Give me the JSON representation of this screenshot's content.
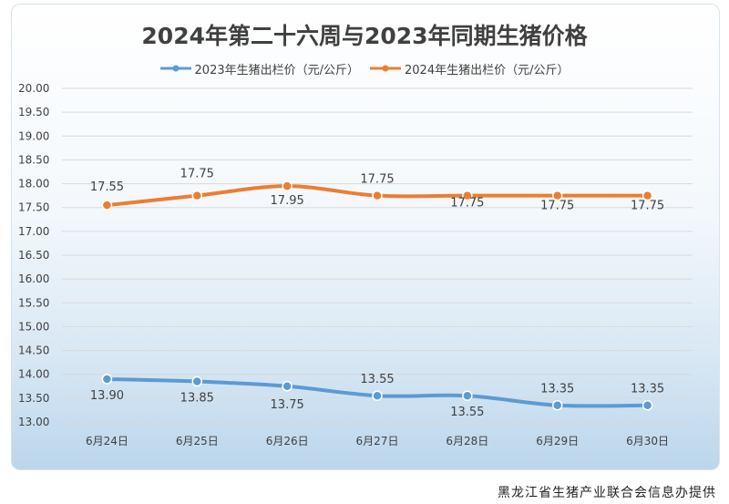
{
  "chart_data": {
    "type": "line",
    "title": "2024年第二十六周与2023年同期生猪价格",
    "categories": [
      "6月24日",
      "6月25日",
      "6月26日",
      "6月27日",
      "6月28日",
      "6月29日",
      "6月30日"
    ],
    "ylim": [
      13.0,
      20.0
    ],
    "yticks": [
      "13.00",
      "13.50",
      "14.00",
      "14.50",
      "15.00",
      "15.50",
      "16.00",
      "16.50",
      "17.00",
      "17.50",
      "18.00",
      "18.50",
      "19.00",
      "19.50",
      "20.00"
    ],
    "series": [
      {
        "name": "2023年生猪出栏价（元/公斤）",
        "color": "#5b9bd5",
        "values": [
          13.9,
          13.85,
          13.75,
          13.55,
          13.55,
          13.35,
          13.35
        ],
        "labels": [
          "13.90",
          "13.85",
          "13.75",
          "13.55",
          "13.55",
          "13.35",
          "13.35"
        ]
      },
      {
        "name": "2024年生猪出栏价（元/公斤）",
        "color": "#ed7d31",
        "values": [
          17.55,
          17.75,
          17.95,
          17.75,
          17.75,
          17.75,
          17.75
        ],
        "labels": [
          "17.55",
          "17.75",
          "17.95",
          "17.75",
          "17.75",
          "17.75",
          "17.75"
        ]
      }
    ],
    "legend": "top-center"
  },
  "footer": "黑龙江省生猪产业联合会信息办提供"
}
